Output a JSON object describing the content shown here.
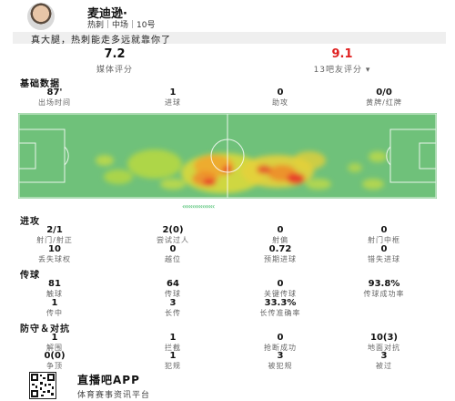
{
  "player": {
    "name": "麦迪逊·",
    "sub": "热刺｜中场｜10号"
  },
  "banner": "真大腿，热刺能走多远就靠你了",
  "ratings": {
    "media": {
      "value": "7.2",
      "label": "媒体评分"
    },
    "fans": {
      "value": "9.1",
      "label": "13吧友评分 ▾"
    }
  },
  "sections": {
    "basic": "基础数据",
    "attack": "进攻",
    "passing": "传球",
    "defense": "防守＆对抗"
  },
  "basic": [
    {
      "value": "87'",
      "label": "出场时间"
    },
    {
      "value": "1",
      "label": "进球"
    },
    {
      "value": "0",
      "label": "助攻"
    },
    {
      "value": "0/0",
      "label": "黄牌/红牌"
    }
  ],
  "attack_row1": [
    {
      "value": "2/1",
      "label": "射门/射正"
    },
    {
      "value": "2(0)",
      "label": "尝试过人"
    },
    {
      "value": "0",
      "label": "射偏"
    },
    {
      "value": "0",
      "label": "射门中框"
    }
  ],
  "attack_row2": [
    {
      "value": "10",
      "label": "丢失球权"
    },
    {
      "value": "0",
      "label": "越位"
    },
    {
      "value": "0.72",
      "label": "预期进球"
    },
    {
      "value": "0",
      "label": "错失进球"
    }
  ],
  "pass_row1": [
    {
      "value": "81",
      "label": "触球"
    },
    {
      "value": "64",
      "label": "传球"
    },
    {
      "value": "0",
      "label": "关键传球"
    },
    {
      "value": "93.8%",
      "label": "传球成功率"
    }
  ],
  "pass_row2": [
    {
      "value": "1",
      "label": "传中"
    },
    {
      "value": "3",
      "label": "长传"
    },
    {
      "value": "33.3%",
      "label": "长传准确率"
    }
  ],
  "def_row1": [
    {
      "value": "1",
      "label": "解围"
    },
    {
      "value": "1",
      "label": "拦截"
    },
    {
      "value": "0",
      "label": "抢断成功"
    },
    {
      "value": "10(3)",
      "label": "地面对抗"
    }
  ],
  "def_row2": [
    {
      "value": "0(0)",
      "label": "争顶"
    },
    {
      "value": "1",
      "label": "犯规"
    },
    {
      "value": "3",
      "label": "被犯规"
    },
    {
      "value": "3",
      "label": "被过"
    }
  ],
  "direction_arrows": "‹‹‹‹‹‹‹‹‹‹‹‹‹‹‹‹",
  "footer": {
    "app": "直播吧APP",
    "slogan": "体育赛事资讯平台"
  },
  "colors": {
    "pitch": "#6fc17a",
    "heat_hot": "#e8322b",
    "heat_warm": "#f3c22b",
    "accent_red": "#e02020"
  }
}
